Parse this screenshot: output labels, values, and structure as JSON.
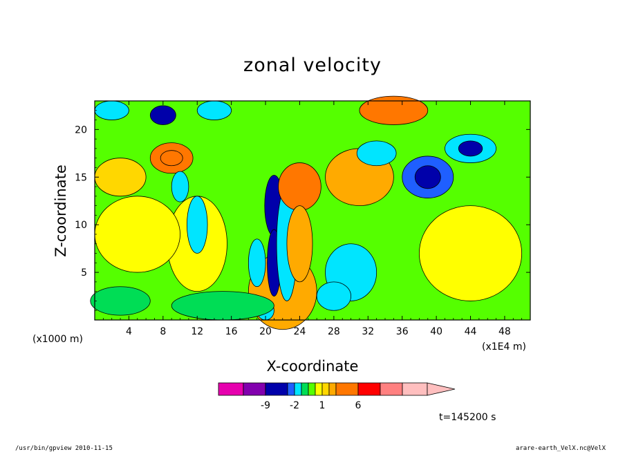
{
  "chart_data": {
    "type": "heatmap",
    "title": "zonal velocity",
    "xlabel": "X-coordinate",
    "ylabel": "Z-coordinate",
    "x_unit_left": "(x1000 m)",
    "x_unit_right": "(x1E4 m)",
    "xlim": [
      0,
      51
    ],
    "ylim": [
      0,
      23
    ],
    "x_ticks": [
      "4",
      "8",
      "12",
      "16",
      "20",
      "24",
      "28",
      "32",
      "36",
      "40",
      "44",
      "48"
    ],
    "y_ticks": [
      "5",
      "10",
      "15",
      "20"
    ],
    "colorbar": {
      "colors": [
        "#e600ae",
        "#8200ae",
        "#0000aa",
        "#1f5fff",
        "#00e5ff",
        "#00dd55",
        "#55ff00",
        "#ffff00",
        "#ffd700",
        "#ffaa00",
        "#ff7700",
        "#ff0000",
        "#ff8080",
        "#ffbfbf"
      ],
      "labels": [
        "-9",
        "-2",
        "1",
        "6"
      ],
      "overflow_arrow": true
    },
    "blobs": [
      {
        "x": 22,
        "y": 3,
        "rx": 4,
        "ry": 4,
        "v": 2
      },
      {
        "x": 21,
        "y": 12,
        "rx": 1.1,
        "ry": 3.2,
        "v": -4.5
      },
      {
        "x": 21,
        "y": 6,
        "rx": 0.8,
        "ry": 3.5,
        "v": -4
      },
      {
        "x": 22.5,
        "y": 8,
        "rx": 1.2,
        "ry": 6,
        "v": -1.6
      },
      {
        "x": 24,
        "y": 14,
        "rx": 2.5,
        "ry": 2.5,
        "v": 3
      },
      {
        "x": 24,
        "y": 8,
        "rx": 1.5,
        "ry": 4,
        "v": 2.5
      },
      {
        "x": 9,
        "y": 17,
        "rx": 2.5,
        "ry": 1.6,
        "v": 3.5
      },
      {
        "x": 9,
        "y": 17,
        "rx": 1.3,
        "ry": 0.8,
        "v": 4.5
      },
      {
        "x": 3,
        "y": 15,
        "rx": 3,
        "ry": 2,
        "v": 1.2
      },
      {
        "x": 31,
        "y": 15,
        "rx": 4,
        "ry": 3,
        "v": 2.2
      },
      {
        "x": 35,
        "y": 22,
        "rx": 4,
        "ry": 1.5,
        "v": 3
      },
      {
        "x": 33,
        "y": 17.5,
        "rx": 2.3,
        "ry": 1.3,
        "v": -2
      },
      {
        "x": 39,
        "y": 15,
        "rx": 3,
        "ry": 2.2,
        "v": -2.2
      },
      {
        "x": 39,
        "y": 15,
        "rx": 1.5,
        "ry": 1.2,
        "v": -4
      },
      {
        "x": 44,
        "y": 18,
        "rx": 3,
        "ry": 1.5,
        "v": -2
      },
      {
        "x": 44,
        "y": 18,
        "rx": 1.4,
        "ry": 0.8,
        "v": -4
      },
      {
        "x": 12,
        "y": 8,
        "rx": 3.5,
        "ry": 5,
        "v": 0.4
      },
      {
        "x": 10,
        "y": 14,
        "rx": 1,
        "ry": 1.6,
        "v": -1.3
      },
      {
        "x": 12,
        "y": 10,
        "rx": 1.2,
        "ry": 3,
        "v": -1.2
      },
      {
        "x": 19,
        "y": 6,
        "rx": 1,
        "ry": 2.5,
        "v": -1.2
      },
      {
        "x": 8,
        "y": 21.5,
        "rx": 1.5,
        "ry": 1,
        "v": -4
      },
      {
        "x": 14,
        "y": 22,
        "rx": 2,
        "ry": 1,
        "v": -2
      },
      {
        "x": 2,
        "y": 22,
        "rx": 2,
        "ry": 1,
        "v": -1.5
      },
      {
        "x": 5,
        "y": 9,
        "rx": 5,
        "ry": 4,
        "v": 0.4
      },
      {
        "x": 44,
        "y": 7,
        "rx": 6,
        "ry": 5,
        "v": 0.4
      },
      {
        "x": 30,
        "y": 5,
        "rx": 3,
        "ry": 3,
        "v": -1.2
      },
      {
        "x": 28,
        "y": 2.5,
        "rx": 2,
        "ry": 1.5,
        "v": -1.3
      },
      {
        "x": 20,
        "y": 1,
        "rx": 1,
        "ry": 1,
        "v": -2
      },
      {
        "x": 3,
        "y": 2,
        "rx": 3.5,
        "ry": 1.5,
        "v": -0.6
      },
      {
        "x": 15,
        "y": 1.5,
        "rx": 6,
        "ry": 1.5,
        "v": -0.6
      }
    ]
  },
  "annotations": {
    "time_label": "t=145200 s",
    "footer_left": "/usr/bin/gpview   2010-11-15",
    "footer_right": "arare-earth_VelX.nc@VelX"
  }
}
